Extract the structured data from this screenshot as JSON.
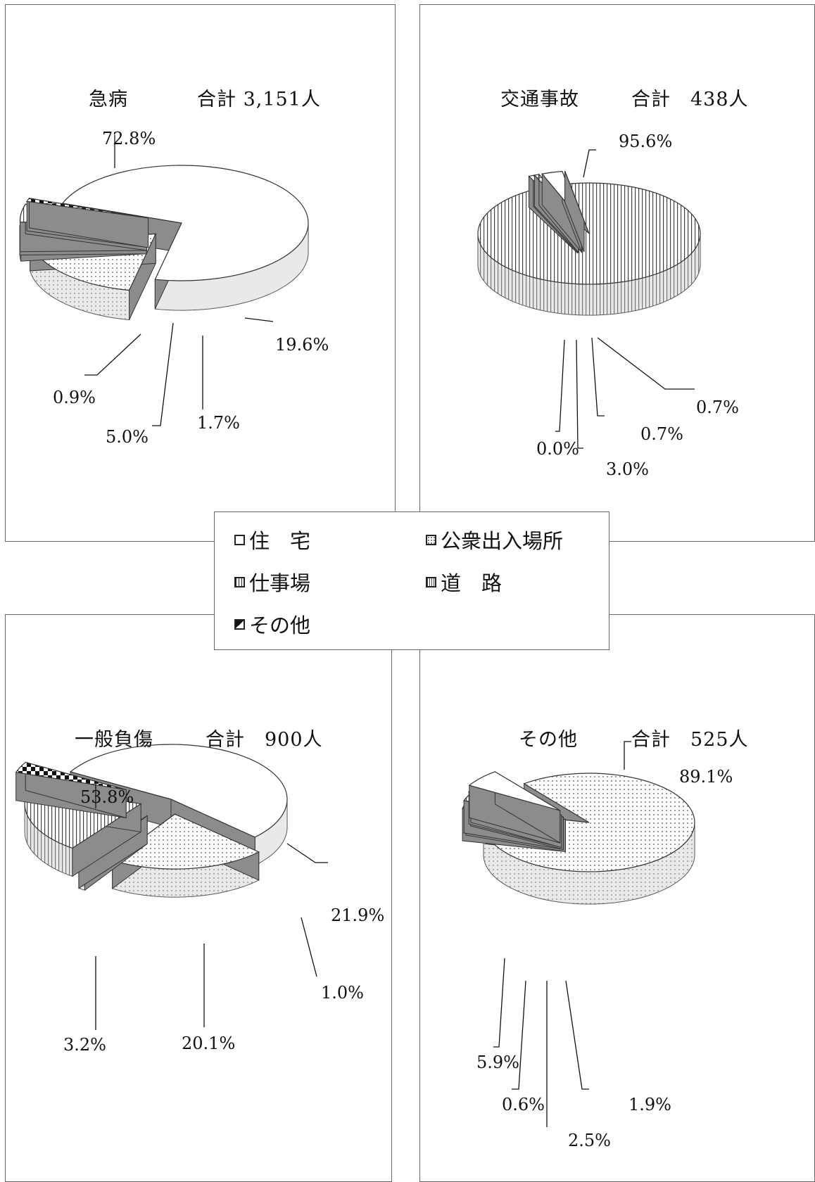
{
  "legend": [
    {
      "label": "住　宅",
      "pattern": "plain"
    },
    {
      "label": "公衆出入場所",
      "pattern": "dots"
    },
    {
      "label": "仕事場",
      "pattern": "grid"
    },
    {
      "label": "道　路",
      "pattern": "vlines"
    },
    {
      "label": "その他",
      "pattern": "dark"
    }
  ],
  "colors": {
    "plain": "#ffffff",
    "side": "#bfbfbf",
    "dark": "#222222",
    "stroke": "#333333"
  },
  "chart_data": [
    {
      "type": "pie",
      "title": "急病",
      "total": "合計 3,151人",
      "slices": [
        {
          "category": "住　宅",
          "value": 72.8,
          "label": "72.8%"
        },
        {
          "category": "公衆出入場所",
          "value": 19.6,
          "label": "19.6%"
        },
        {
          "category": "仕事場",
          "value": 1.7,
          "label": "1.7%"
        },
        {
          "category": "道　路",
          "value": 5.0,
          "label": "5.0%"
        },
        {
          "category": "その他",
          "value": 0.9,
          "label": "0.9%"
        }
      ]
    },
    {
      "type": "pie",
      "title": "交通事故",
      "total": "合計　438人",
      "slices": [
        {
          "category": "道　路",
          "value": 95.6,
          "label": "95.6%"
        },
        {
          "category": "公衆出入場所",
          "value": 0.7,
          "label": "0.7%"
        },
        {
          "category": "仕事場",
          "value": 0.7,
          "label": "0.7%"
        },
        {
          "category": "住　宅",
          "value": 3.0,
          "label": "3.0%"
        },
        {
          "category": "その他",
          "value": 0.0,
          "label": "0.0%"
        }
      ]
    },
    {
      "type": "pie",
      "title": "一般負傷",
      "total": "合計　900人",
      "slices": [
        {
          "category": "住　宅",
          "value": 53.8,
          "label": "53.8%"
        },
        {
          "category": "公衆出入場所",
          "value": 21.9,
          "label": "21.9%"
        },
        {
          "category": "仕事場",
          "value": 1.0,
          "label": "1.0%"
        },
        {
          "category": "道　路",
          "value": 20.1,
          "label": "20.1%"
        },
        {
          "category": "その他",
          "value": 3.2,
          "label": "3.2%"
        }
      ]
    },
    {
      "type": "pie",
      "title": "その他",
      "total": "合計　525人",
      "slices": [
        {
          "category": "公衆出入場所",
          "value": 89.1,
          "label": "89.1%"
        },
        {
          "category": "仕事場",
          "value": 1.9,
          "label": "1.9%"
        },
        {
          "category": "道　路",
          "value": 2.5,
          "label": "2.5%"
        },
        {
          "category": "その他",
          "value": 0.6,
          "label": "0.6%"
        },
        {
          "category": "住　宅",
          "value": 5.9,
          "label": "5.9%"
        }
      ]
    }
  ]
}
